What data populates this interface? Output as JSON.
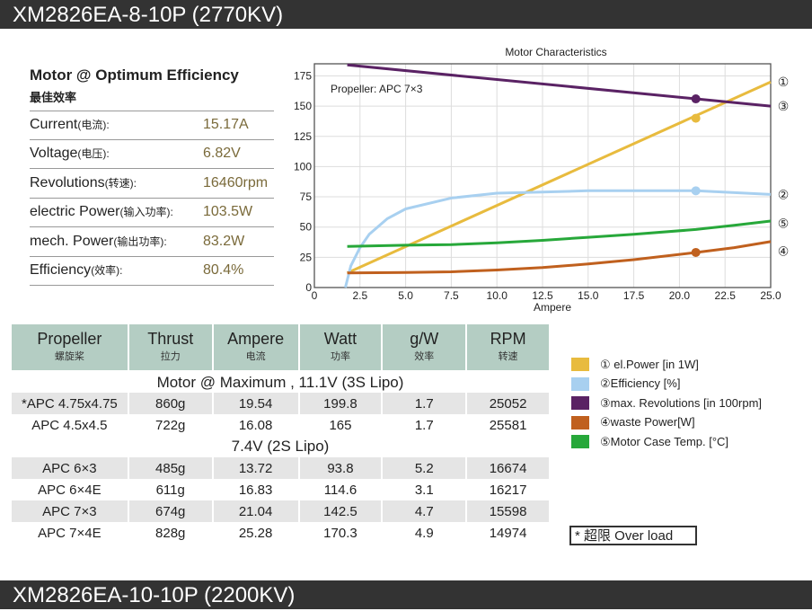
{
  "header": {
    "title": "XM2826EA-8-10P (2770KV)"
  },
  "footer": {
    "title": "XM2826EA-10-10P (2200KV)"
  },
  "optimum": {
    "title": "Motor @ Optimum Efficiency",
    "subtitle": "最佳效率",
    "rows": [
      {
        "label": "Current",
        "label_cn": "(电流):",
        "value": "15.17A"
      },
      {
        "label": "Voltage",
        "label_cn": "(电压):",
        "value": "6.82V"
      },
      {
        "label": "Revolutions",
        "label_cn": "(转速):",
        "value": "16460rpm"
      },
      {
        "label": "electric Power",
        "label_cn": "(输入功率):",
        "value": "103.5W"
      },
      {
        "label": "mech. Power",
        "label_cn": "(输出功率):",
        "value": "83.2W"
      },
      {
        "label": "Efficiency",
        "label_cn": "(效率):",
        "value": "80.4%"
      }
    ]
  },
  "table": {
    "headers": [
      {
        "en": "Propeller",
        "cn": "螺旋桨"
      },
      {
        "en": "Thrust",
        "cn": "拉力"
      },
      {
        "en": "Ampere",
        "cn": "电流"
      },
      {
        "en": "Watt",
        "cn": "功率"
      },
      {
        "en": "g/W",
        "cn": "效率"
      },
      {
        "en": "RPM",
        "cn": "转速"
      }
    ],
    "sections": [
      {
        "title": "Motor @ Maximum , 11.1V (3S Lipo)",
        "rows": [
          [
            "*APC 4.75x4.75",
            "860g",
            "19.54",
            "199.8",
            "1.7",
            "25052"
          ],
          [
            "APC 4.5x4.5",
            "722g",
            "16.08",
            "165",
            "1.7",
            "25581"
          ]
        ]
      },
      {
        "title": "7.4V (2S Lipo)",
        "rows": [
          [
            "APC 6×3",
            "485g",
            "13.72",
            "93.8",
            "5.2",
            "16674"
          ],
          [
            "APC 6×4E",
            "611g",
            "16.83",
            "114.6",
            "3.1",
            "16217"
          ],
          [
            "APC 7×3",
            "674g",
            "21.04",
            "142.5",
            "4.7",
            "15598"
          ],
          [
            "APC 7×4E",
            "828g",
            "25.28",
            "170.3",
            "4.9",
            "14974"
          ]
        ]
      }
    ]
  },
  "legend": [
    {
      "label": "① el.Power [in 1W]",
      "color": "#e8bb3e"
    },
    {
      "label": "②Efficiency [%]",
      "color": "#a8d0f0"
    },
    {
      "label": "③max. Revolutions [in 100rpm]",
      "color": "#5a2264"
    },
    {
      "label": "④waste Power[W]",
      "color": "#c0601e"
    },
    {
      "label": "⑤Motor Case Temp. [°C]",
      "color": "#27a83a"
    }
  ],
  "overload": "* 超限 Over load",
  "chart_data": {
    "type": "line",
    "title": "Motor Characteristics",
    "xlabel": "Ampere",
    "annotation": "Propeller:  APC 7×3",
    "xlim": [
      0,
      25
    ],
    "ylim": [
      0,
      185
    ],
    "grid": true,
    "xticks": [
      "0",
      "2.5",
      "5.0",
      "7.5",
      "10.0",
      "12.5",
      "15.0",
      "17.5",
      "20.0",
      "22.5",
      "25.0"
    ],
    "yticks": [
      "0",
      "25",
      "50",
      "75",
      "100",
      "125",
      "150",
      "175"
    ],
    "marker_x": 20.9,
    "series": [
      {
        "name": "①",
        "color": "#e8bb3e",
        "x": [
          1.8,
          25
        ],
        "y": [
          12,
          170
        ],
        "marker": 140
      },
      {
        "name": "②",
        "color": "#a8d0f0",
        "x": [
          1.7,
          2,
          2.5,
          3,
          4,
          5,
          7.5,
          10,
          12.5,
          15,
          17.5,
          20.9,
          25
        ],
        "y": [
          0,
          18,
          33,
          44,
          57,
          65,
          74,
          78,
          79,
          80,
          80,
          80,
          77
        ],
        "marker": 80
      },
      {
        "name": "③",
        "color": "#5a2264",
        "x": [
          1.8,
          25
        ],
        "y": [
          184,
          150
        ],
        "marker": 156
      },
      {
        "name": "④",
        "color": "#c0601e",
        "x": [
          1.8,
          5,
          7.5,
          10,
          12.5,
          15,
          17.5,
          20.9,
          23,
          25
        ],
        "y": [
          12,
          12.5,
          13,
          14.5,
          16.5,
          19.5,
          23,
          29,
          33,
          38
        ],
        "marker": 29
      },
      {
        "name": "⑤",
        "color": "#27a83a",
        "x": [
          1.8,
          5,
          7.5,
          10,
          12.5,
          15,
          17.5,
          20.9,
          23,
          25
        ],
        "y": [
          34,
          35,
          35.5,
          37,
          39,
          41.5,
          44,
          48,
          51.5,
          55
        ],
        "marker": null
      }
    ]
  }
}
